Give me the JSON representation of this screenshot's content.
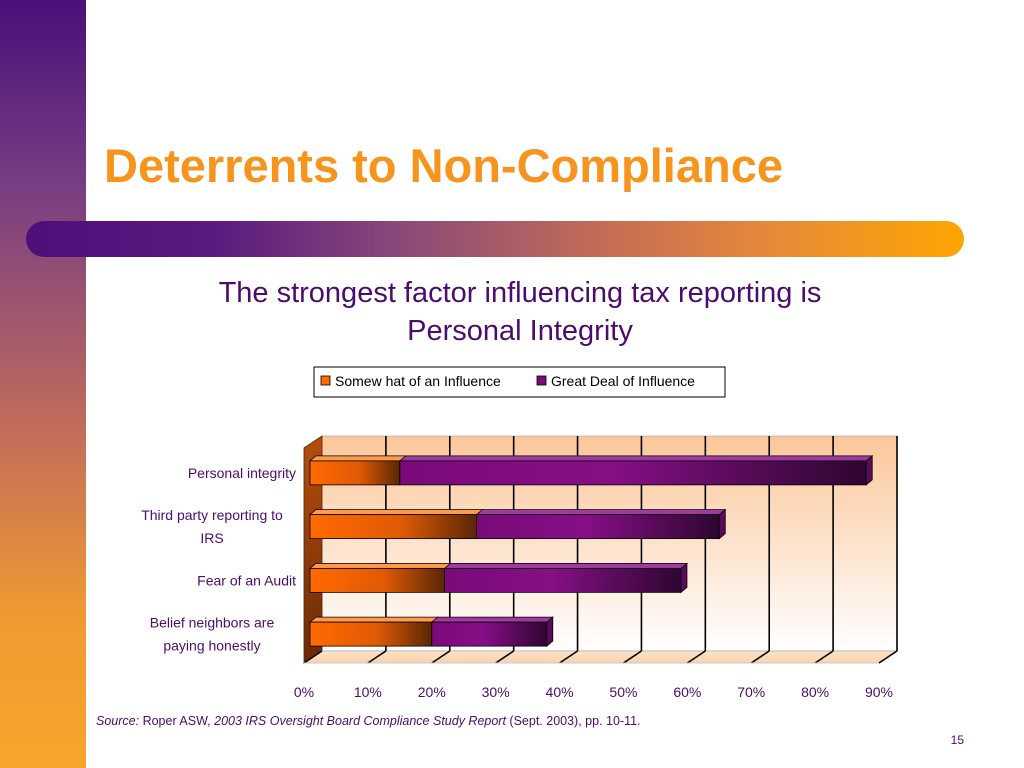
{
  "slide": {
    "title": "Deterrents to Non-Compliance",
    "subtitle_line1": "The strongest factor influencing tax reporting is",
    "subtitle_line2": "Personal Integrity",
    "page_number": "15"
  },
  "source": {
    "label": "Source:",
    "author": " Roper ASW, ",
    "report": "2003 IRS Oversight Board Compliance Study Report",
    "details": " (Sept. 2003), pp. 10-11."
  },
  "colors": {
    "accent_orange": "#f7941d",
    "text_purple": "#4b0c6e",
    "series_somewhat": "#ff6a00",
    "series_great_deal": "#7a0a7a"
  },
  "chart_data": {
    "type": "bar",
    "orientation": "horizontal",
    "stacked": true,
    "categories": [
      [
        "Personal integrity"
      ],
      [
        "Third party reporting to",
        "IRS"
      ],
      [
        "Fear of an Audit"
      ],
      [
        "Belief neighbors are",
        "paying honestly"
      ]
    ],
    "series": [
      {
        "name": "Somew hat of an Influence",
        "values": [
          15,
          27,
          22,
          20
        ]
      },
      {
        "name": "Great Deal of Influence",
        "values": [
          73,
          38,
          37,
          18
        ]
      }
    ],
    "xticks": [
      "0%",
      "10%",
      "20%",
      "30%",
      "40%",
      "50%",
      "60%",
      "70%",
      "80%",
      "90%"
    ],
    "xlim": [
      0,
      90
    ],
    "grid": true,
    "legend": "top"
  }
}
